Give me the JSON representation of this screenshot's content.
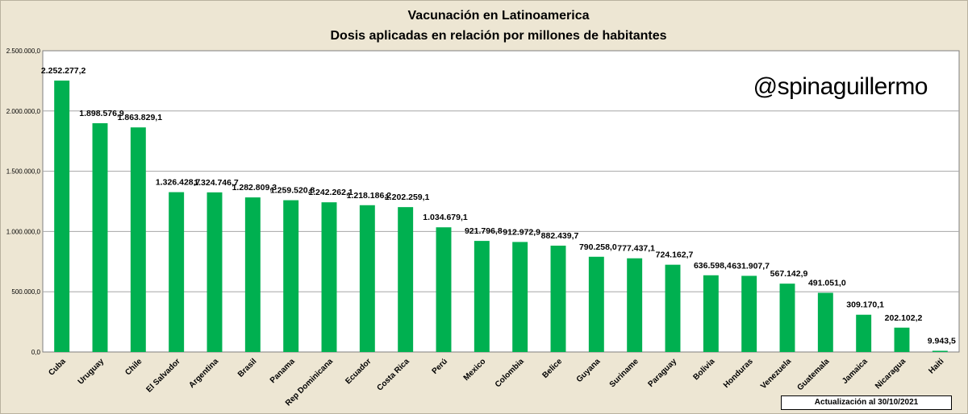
{
  "chart_data": {
    "type": "bar",
    "title": "Vacunación en Latinoamerica",
    "subtitle": "Dosis aplicadas en relación por millones de habitantes",
    "watermark": "@spinaguillermo",
    "note": "Actualización  al 30/10/2021",
    "ylim": [
      0,
      2500000
    ],
    "y_ticks": [
      0,
      500000,
      1000000,
      1500000,
      2000000,
      2500000
    ],
    "y_tick_labels": [
      "0,0",
      "500.000,0",
      "1.000.000,0",
      "1.500.000,0",
      "2.000.000,0",
      "2.500.000,0"
    ],
    "grid": true,
    "categories": [
      "Cuba",
      "Uruguay",
      "Chile",
      "El Salvador",
      "Argentina",
      "Brasil",
      "Panama",
      "Rep Dominicana",
      "Ecuador",
      "Costa Rica",
      "Perú",
      "Mexico",
      "Colombia",
      "Belice",
      "Guyana",
      "Suriname",
      "Paraguay",
      "Bolivia",
      "Honduras",
      "Venezuela",
      "Guatemala",
      "Jamaica",
      "Nicaragua",
      "Haiti"
    ],
    "values": [
      2252277.2,
      1898576.9,
      1863829.1,
      1326428.7,
      1324746.7,
      1282809.3,
      1259520.8,
      1242262.1,
      1218186.2,
      1202259.1,
      1034679.1,
      921796.8,
      912972.9,
      882439.7,
      790258.0,
      777437.1,
      724162.7,
      636598.4,
      631907.7,
      567142.9,
      491051.0,
      309170.1,
      202102.2,
      9943.5
    ],
    "value_labels": [
      "2.252.277,2",
      "1.898.576,9",
      "1.863.829,1",
      "1.326.428,7",
      "1.324.746,7",
      "1.282.809,3",
      "1.259.520,8",
      "1.242.262,1",
      "1.218.186,2",
      "1.202.259,1",
      "1.034.679,1",
      "921.796,8",
      "912.972,9",
      "882.439,7",
      "790.258,0",
      "777.437,1",
      "724.162,7",
      "636.598,4",
      "631.907,7",
      "567.142,9",
      "491.051,0",
      "309.170,1",
      "202.102,2",
      "9.943,5"
    ],
    "colors": {
      "bar": "#00b050",
      "plot_background": "#ffffff",
      "page_background": "#ede6d3",
      "grid": "#a6a6a6"
    }
  }
}
